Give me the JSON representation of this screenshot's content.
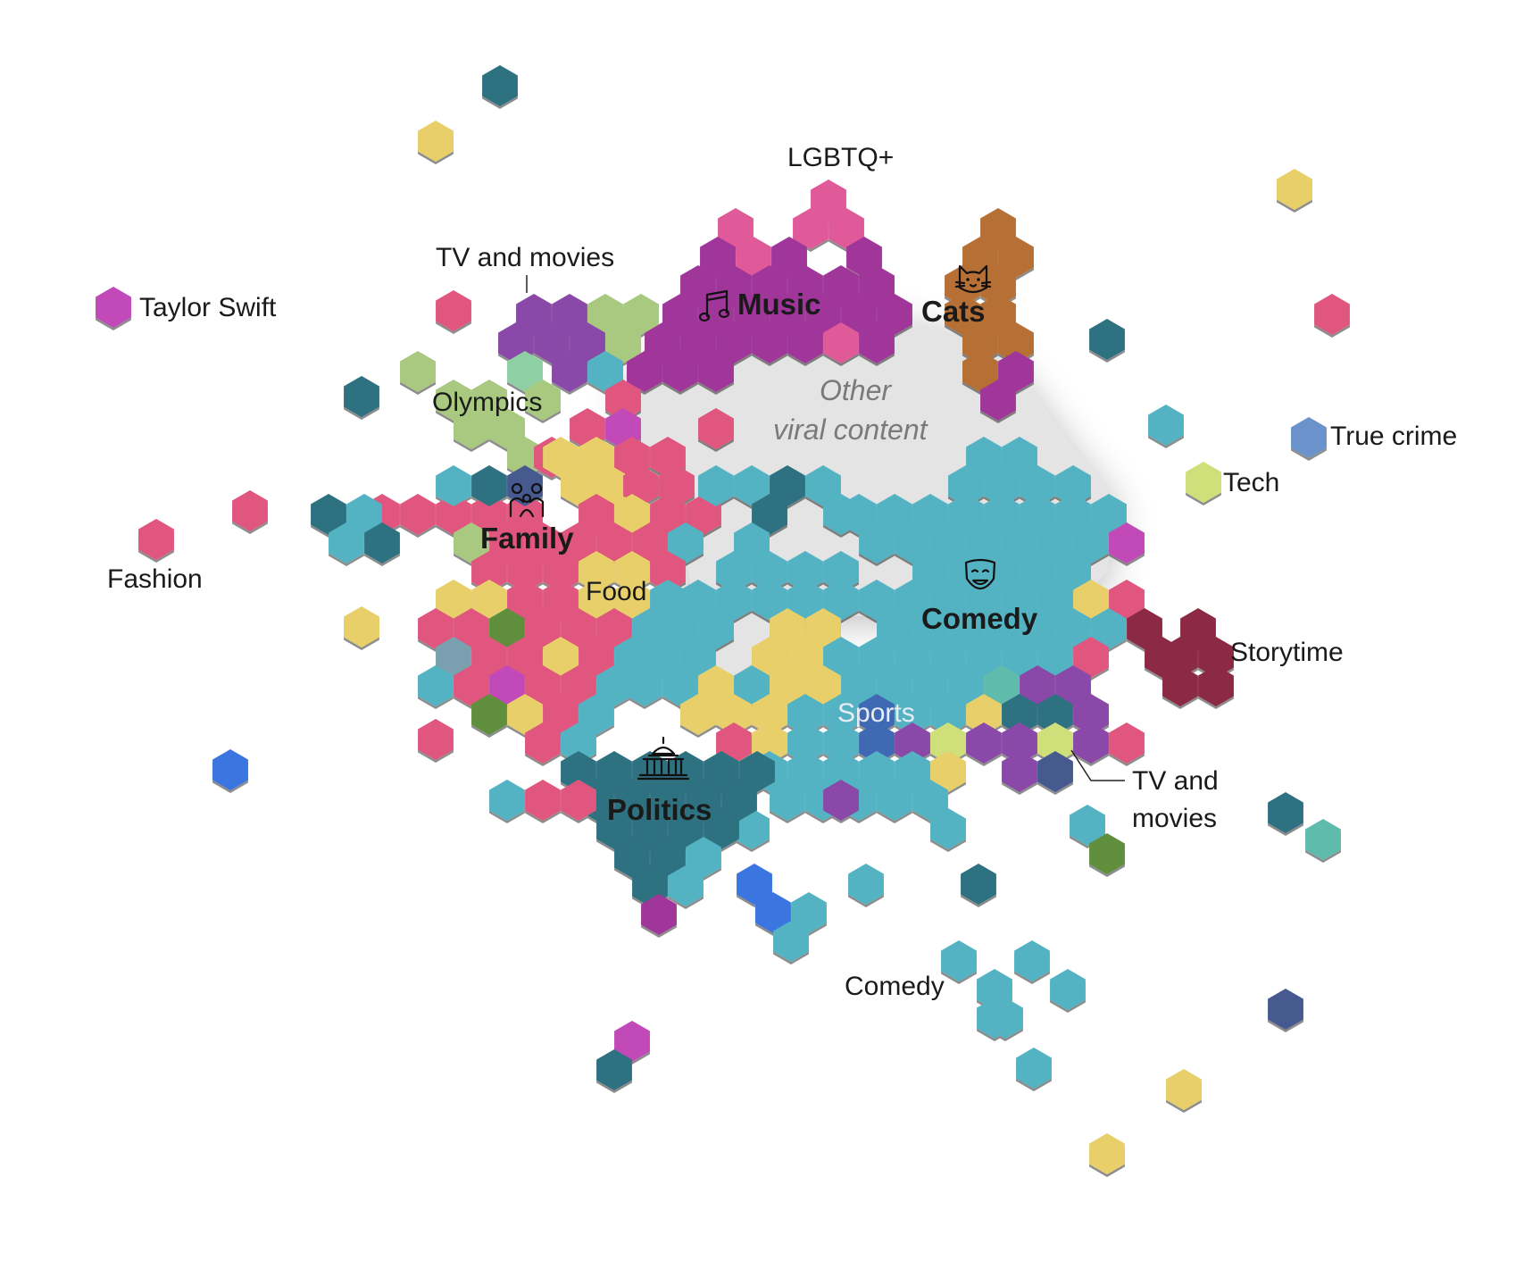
{
  "colors": {
    "pink": "#e0567e",
    "purple": "#a0359a",
    "violet": "#8a4aa8",
    "orange": "#b66f36",
    "teal": "#52b3c3",
    "dark_teal": "#2f7180",
    "yellow": "#e8cf6a",
    "light_green": "#a8c97f",
    "mint": "#8ed0a3",
    "crimson": "#8c2b44",
    "blue": "#3a74e0",
    "slate_blue": "#6b93cb",
    "navy": "#475a8f",
    "green": "#5f8f3c",
    "lime": "#cfe07a",
    "magenta": "#c24ab8",
    "seafoam": "#5fbcad",
    "gray_blue": "#7aa0b0",
    "hot_pink": "#e05a9a",
    "sports_blue": "#3f69b3",
    "empty_region": "#e4e4e4"
  },
  "labels": {
    "lgbtq": "LGBTQ+",
    "tv_movies_top": "TV and movies",
    "music": "Music",
    "cats": "Cats",
    "taylor_swift": "Taylor Swift",
    "olympics": "Olympics",
    "other_line1": "Other",
    "other_line2": "viral content",
    "true_crime": "True crime",
    "tech": "Tech",
    "family": "Family",
    "fashion": "Fashion",
    "food": "Food",
    "comedy_main": "Comedy",
    "storytime": "Storytime",
    "sports": "Sports",
    "tv_movies_bottom_line1": "TV and",
    "tv_movies_bottom_line2": "movies",
    "politics": "Politics",
    "comedy_outlier": "Comedy"
  },
  "icons": [
    "music-note-icon",
    "cat-face-icon",
    "family-icon",
    "theater-mask-icon",
    "capitol-building-icon"
  ]
}
